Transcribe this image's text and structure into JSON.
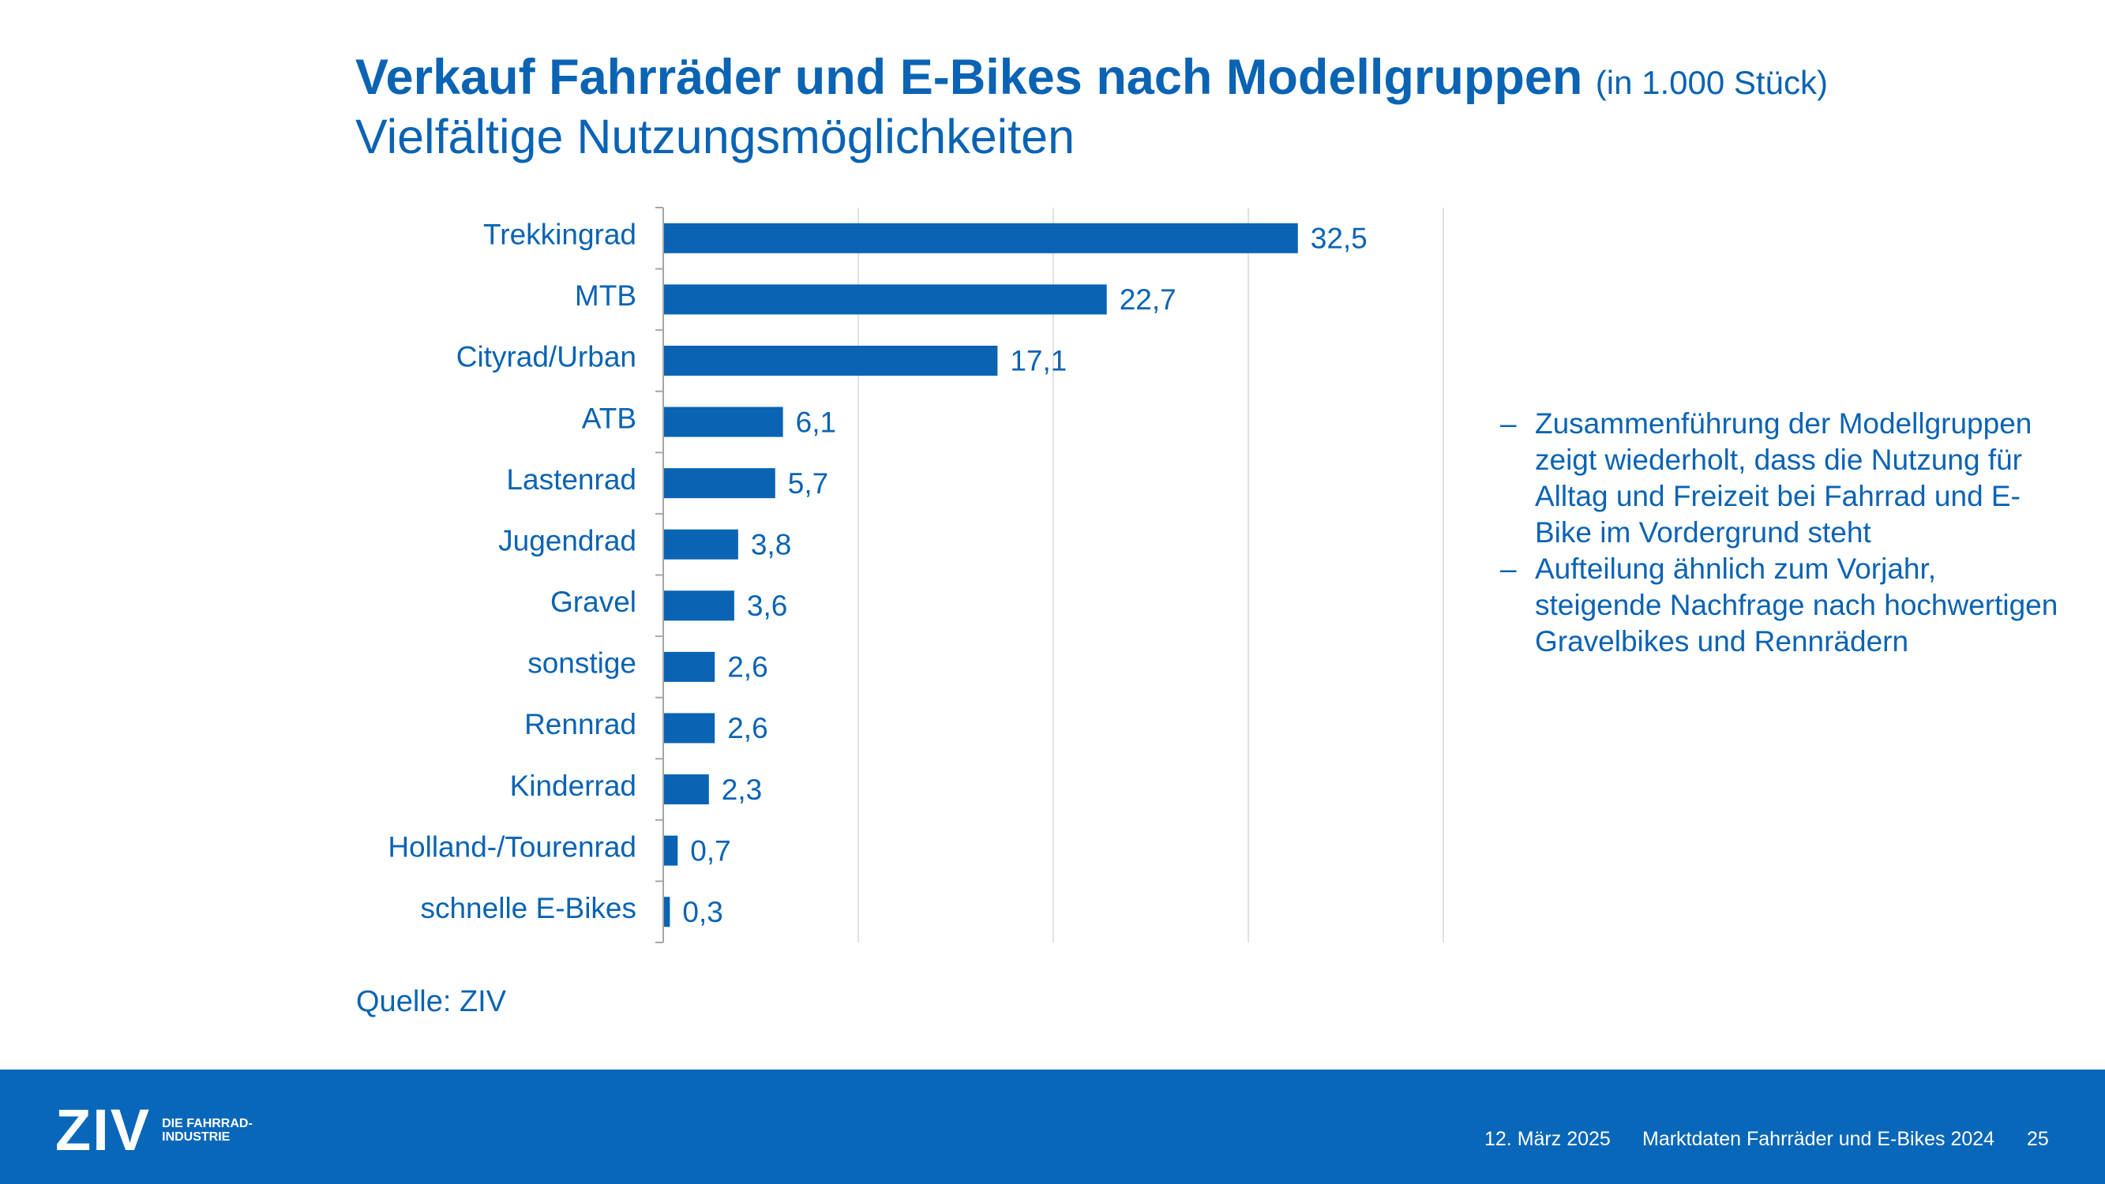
{
  "title": "Verkauf Fahrräder und E-Bikes nach Modellgruppen",
  "title_unit": "(in 1.000 Stück)",
  "subtitle": "Vielfältige Nutzungsmöglichkeiten",
  "chart_data": {
    "type": "bar",
    "orientation": "horizontal",
    "categories": [
      "Trekkingrad",
      "MTB",
      "Cityrad/Urban",
      "ATB",
      "Lastenrad",
      "Jugendrad",
      "Gravel",
      "sonstige",
      "Rennrad",
      "Kinderrad",
      "Holland-/Tourenrad",
      "schnelle E-Bikes"
    ],
    "values": [
      32.5,
      22.7,
      17.1,
      6.1,
      5.7,
      3.8,
      3.6,
      2.6,
      2.6,
      2.3,
      0.7,
      0.3
    ],
    "value_labels": [
      "32,5",
      "22,7",
      "17,1",
      "6,1",
      "5,7",
      "3,8",
      "3,6",
      "2,6",
      "2,6",
      "2,3",
      "0,7",
      "0,3"
    ],
    "xlim": [
      0,
      40
    ],
    "grid": true,
    "bar_color": "#0a63b3"
  },
  "notes": [
    "Zusammenführung der Modellgruppen zeigt wiederholt, dass die Nutzung für Alltag und Freizeit bei Fahrrad und E-Bike im Vordergrund steht",
    "Aufteilung ähnlich zum Vorjahr, steigende Nachfrage nach hochwertigen Gravelbikes und Rennrädern"
  ],
  "note_marker": "–",
  "source": "Quelle: ZIV",
  "footer": {
    "logo_text": "ZIV",
    "logo_tagline": "DIE FAHRRAD-INDUSTRIE",
    "date": "12. März 2025",
    "doc_title": "Marktdaten Fahrräder und E-Bikes 2024",
    "page": "25"
  },
  "colors": {
    "brand_blue": "#0a63b3",
    "footer_blue": "#0867b9",
    "grid": "#d9d9d9",
    "axis": "#a6a6a6"
  }
}
